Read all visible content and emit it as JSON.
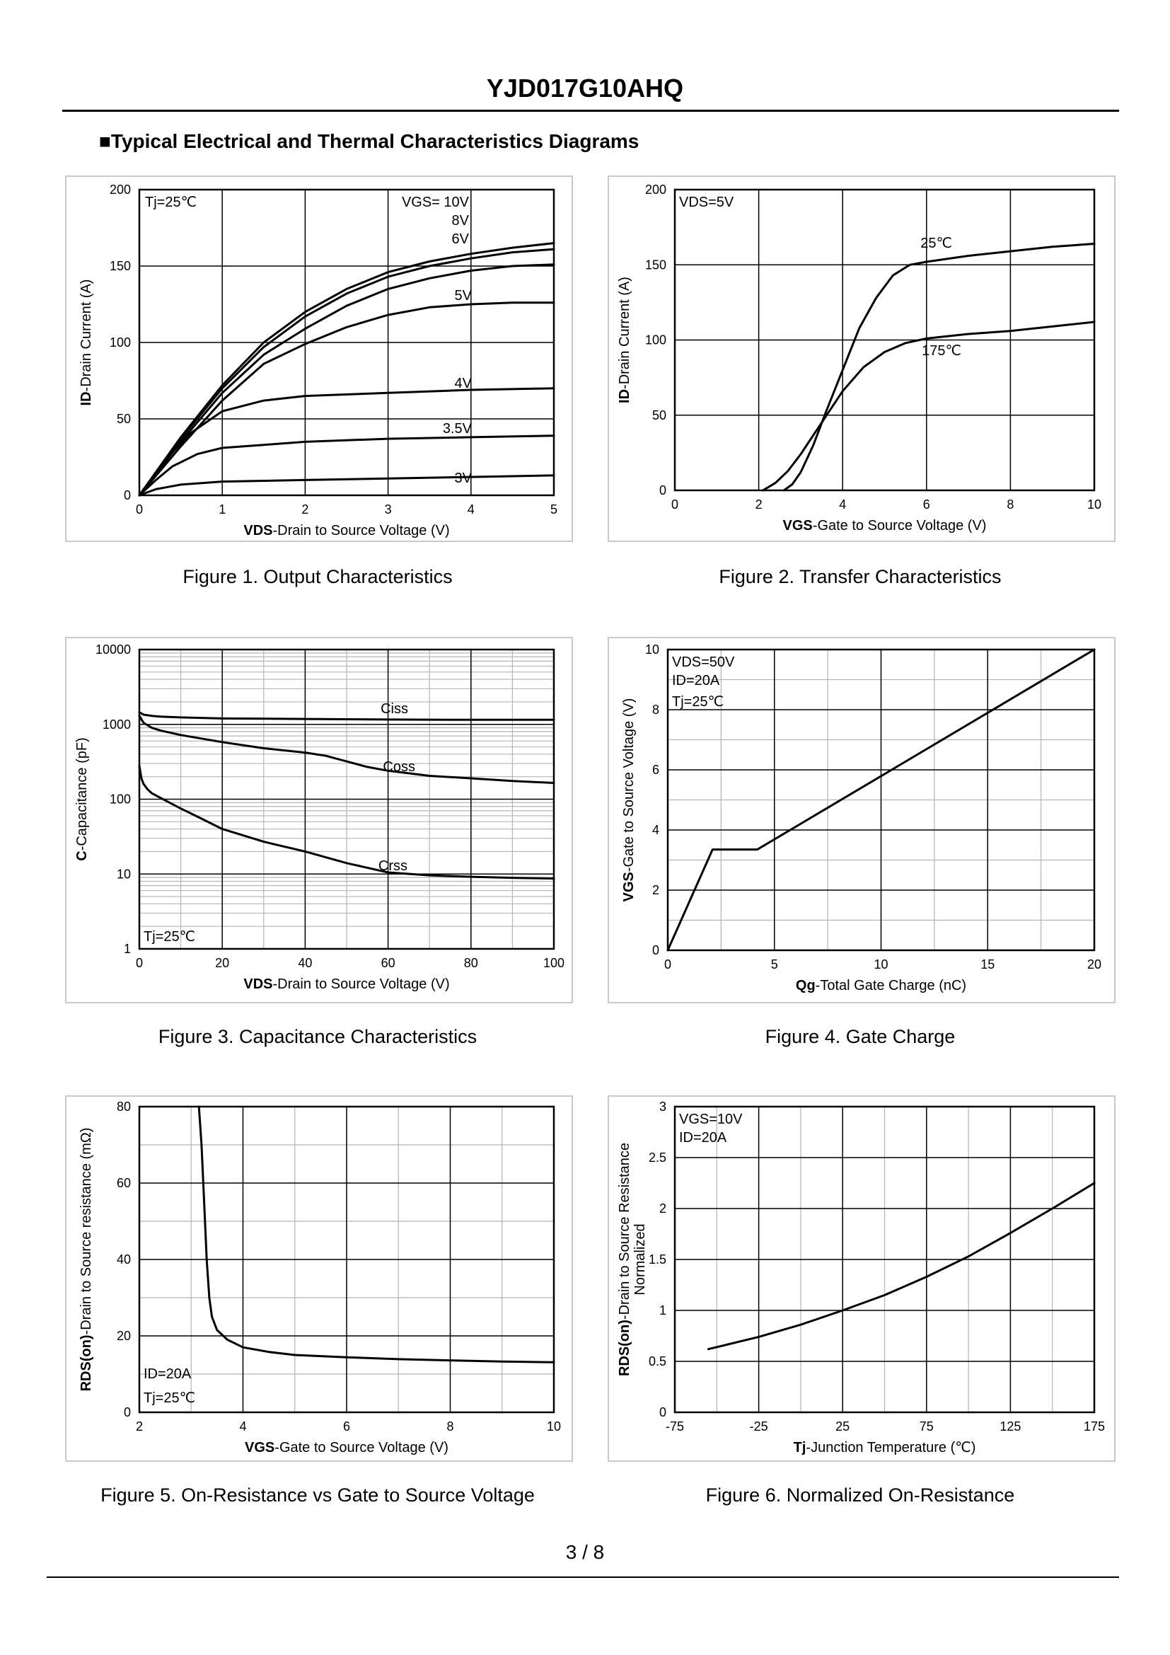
{
  "header": {
    "title": "YJD017G10AHQ"
  },
  "section_title": "■Typical Electrical and Thermal Characteristics Diagrams",
  "footer": {
    "page": "3 / 8"
  },
  "colors": {
    "curve": "#000000",
    "grid": "#000000",
    "minor_grid": "#b4b4b4",
    "panel_border": "#c8c8c8"
  },
  "chart_data": [
    {
      "id": "fig1",
      "type": "line",
      "caption": "Figure 1.  Output Characteristics",
      "xlabel_bold": "VDS",
      "xlabel_rest": "-Drain to Source Voltage (V)",
      "ylabel_bold": "ID",
      "ylabel_rest": "-Drain Current (A)",
      "xlim": [
        0,
        5
      ],
      "ylim": [
        0,
        200
      ],
      "xscale": "linear",
      "yscale": "linear",
      "xticks": [
        0,
        1,
        2,
        3,
        4,
        5
      ],
      "yticks": [
        0,
        50,
        100,
        150,
        200
      ],
      "minor_x": [],
      "minor_y": [],
      "annotations": [
        "Tj=25℃",
        "VGS= 10V",
        "8V",
        "6V",
        "5V",
        "4V",
        "3.5V",
        "3V"
      ],
      "series": [
        {
          "name": "10V",
          "x": [
            0,
            0.5,
            1,
            1.5,
            2,
            2.5,
            3,
            3.5,
            4,
            4.5,
            5
          ],
          "y": [
            0,
            38,
            72,
            100,
            120,
            135,
            146,
            153,
            158,
            162,
            165
          ]
        },
        {
          "name": "8V",
          "x": [
            0,
            0.5,
            1,
            1.5,
            2,
            2.5,
            3,
            3.5,
            4,
            4.5,
            5
          ],
          "y": [
            0,
            37,
            70,
            97,
            117,
            132,
            143,
            150,
            155,
            159,
            161
          ]
        },
        {
          "name": "6V",
          "x": [
            0,
            0.5,
            1,
            1.5,
            2,
            2.5,
            3,
            3.5,
            4,
            4.5,
            5
          ],
          "y": [
            0,
            35,
            67,
            92,
            109,
            124,
            135,
            142,
            147,
            150,
            151
          ]
        },
        {
          "name": "5V",
          "x": [
            0,
            0.5,
            1,
            1.5,
            2,
            2.5,
            3,
            3.5,
            4,
            4.5,
            5
          ],
          "y": [
            0,
            32,
            62,
            86,
            99,
            110,
            118,
            123,
            125,
            126,
            126
          ]
        },
        {
          "name": "4V",
          "x": [
            0,
            0.3,
            0.6,
            1,
            1.5,
            2,
            3,
            4,
            5
          ],
          "y": [
            0,
            22,
            40,
            55,
            62,
            65,
            67,
            69,
            70
          ]
        },
        {
          "name": "3.5V",
          "x": [
            0,
            0.2,
            0.4,
            0.7,
            1,
            1.5,
            2,
            3,
            4,
            5
          ],
          "y": [
            0,
            10,
            19,
            27,
            31,
            33,
            35,
            37,
            38,
            39
          ]
        },
        {
          "name": "3V",
          "x": [
            0,
            0.2,
            0.5,
            1,
            2,
            3,
            4,
            5
          ],
          "y": [
            0,
            4,
            7,
            9,
            10,
            11,
            12,
            13
          ]
        }
      ]
    },
    {
      "id": "fig2",
      "type": "line",
      "caption": "Figure 2.  Transfer Characteristics",
      "xlabel_bold": "VGS",
      "xlabel_rest": "-Gate to Source Voltage (V)",
      "ylabel_bold": "ID",
      "ylabel_rest": "-Drain Current (A)",
      "xlim": [
        0,
        10
      ],
      "ylim": [
        0,
        200
      ],
      "xscale": "linear",
      "yscale": "linear",
      "xticks": [
        0,
        2,
        4,
        6,
        8,
        10
      ],
      "yticks": [
        0,
        50,
        100,
        150,
        200
      ],
      "minor_x": [],
      "minor_y": [],
      "annotations": [
        "VDS=5V",
        "25℃",
        "175℃"
      ],
      "series": [
        {
          "name": "25℃",
          "x": [
            2.6,
            2.8,
            3,
            3.3,
            3.6,
            4,
            4.4,
            4.8,
            5.2,
            5.6,
            6,
            7,
            8,
            9,
            10
          ],
          "y": [
            0,
            4,
            12,
            30,
            52,
            80,
            108,
            128,
            143,
            150,
            152,
            156,
            159,
            162,
            164
          ]
        },
        {
          "name": "175℃",
          "x": [
            2.1,
            2.4,
            2.7,
            3,
            3.5,
            4,
            4.5,
            5,
            5.5,
            6,
            7,
            8,
            9,
            10
          ],
          "y": [
            0,
            5,
            13,
            24,
            45,
            66,
            82,
            92,
            98,
            101,
            104,
            106,
            109,
            112
          ]
        }
      ]
    },
    {
      "id": "fig3",
      "type": "line",
      "caption": "Figure 3.  Capacitance Characteristics",
      "xlabel_bold": "VDS",
      "xlabel_rest": "-Drain to Source Voltage (V)",
      "ylabel_bold": "C",
      "ylabel_rest": "-Capacitance (pF)",
      "xlim": [
        0,
        100
      ],
      "ylim": [
        1,
        10000
      ],
      "xscale": "linear",
      "yscale": "log",
      "xticks": [
        0,
        20,
        40,
        60,
        80,
        100
      ],
      "yticks": [
        1,
        10,
        100,
        1000,
        10000
      ],
      "minor_x": [
        10,
        30,
        50,
        70,
        90
      ],
      "minor_y": [
        2,
        3,
        4,
        5,
        6,
        7,
        8,
        9,
        20,
        30,
        40,
        50,
        60,
        70,
        80,
        90,
        200,
        300,
        400,
        500,
        600,
        700,
        800,
        900,
        2000,
        3000,
        4000,
        5000,
        6000,
        7000,
        8000,
        9000
      ],
      "annotations": [
        "Ciss",
        "Coss",
        "Crss",
        "Tj=25℃"
      ],
      "series": [
        {
          "name": "Ciss",
          "x": [
            0,
            1,
            3,
            5,
            10,
            20,
            40,
            60,
            80,
            100
          ],
          "y": [
            1450,
            1350,
            1300,
            1270,
            1240,
            1200,
            1180,
            1160,
            1150,
            1150
          ]
        },
        {
          "name": "Coss",
          "x": [
            0,
            1,
            3,
            5,
            10,
            20,
            30,
            40,
            45,
            50,
            55,
            60,
            70,
            80,
            90,
            100
          ],
          "y": [
            1300,
            1050,
            900,
            830,
            720,
            580,
            480,
            420,
            380,
            320,
            270,
            240,
            205,
            190,
            175,
            165
          ]
        },
        {
          "name": "Crss",
          "x": [
            0,
            0.5,
            1,
            2,
            3,
            5,
            10,
            15,
            20,
            30,
            40,
            50,
            60,
            70,
            80,
            90,
            100
          ],
          "y": [
            280,
            190,
            160,
            135,
            120,
            105,
            75,
            55,
            40,
            27,
            20,
            14,
            10.5,
            9.6,
            9.2,
            8.9,
            8.7
          ]
        }
      ]
    },
    {
      "id": "fig4",
      "type": "line",
      "caption": "Figure 4.  Gate Charge",
      "xlabel_bold": "Qg",
      "xlabel_rest": "-Total  Gate Charge (nC)",
      "ylabel_bold": "VGS",
      "ylabel_rest": "-Gate to Source Voltage (V)",
      "xlim": [
        0,
        20
      ],
      "ylim": [
        0,
        10
      ],
      "xscale": "linear",
      "yscale": "linear",
      "xticks": [
        0,
        5,
        10,
        15,
        20
      ],
      "yticks": [
        0,
        2,
        4,
        6,
        8,
        10
      ],
      "minor_x": [
        2.5,
        7.5,
        12.5,
        17.5
      ],
      "minor_y": [
        1,
        3,
        5,
        7,
        9
      ],
      "annotations": [
        "VDS=50V",
        "ID=20A",
        "Tj=25℃"
      ],
      "series": [
        {
          "name": "VGS",
          "x": [
            0,
            2.1,
            4.2,
            20
          ],
          "y": [
            0,
            3.35,
            3.35,
            10
          ]
        }
      ]
    },
    {
      "id": "fig5",
      "type": "line",
      "caption": "Figure 5.  On-Resistance vs Gate to Source Voltage",
      "xlabel_bold": "VGS",
      "xlabel_rest": "-Gate to Source Voltage (V)",
      "ylabel_bold": "RDS(on)",
      "ylabel_rest": "-Drain to Source resistance (mΩ)",
      "xlim": [
        2,
        10
      ],
      "ylim": [
        0,
        80
      ],
      "xscale": "linear",
      "yscale": "linear",
      "xticks": [
        2,
        4,
        6,
        8,
        10
      ],
      "yticks": [
        0,
        20,
        40,
        60,
        80
      ],
      "minor_x": [
        3,
        5,
        7,
        9
      ],
      "minor_y": [
        10,
        30,
        50,
        70
      ],
      "annotations": [
        "ID=20A",
        "Tj=25℃"
      ],
      "series": [
        {
          "name": "RDS(on)",
          "x": [
            3.15,
            3.2,
            3.25,
            3.3,
            3.35,
            3.4,
            3.5,
            3.7,
            4,
            4.5,
            5,
            6,
            7,
            8,
            9,
            10
          ],
          "y": [
            80,
            70,
            55,
            40,
            30,
            25,
            21.5,
            19,
            17,
            15.8,
            15,
            14.4,
            13.9,
            13.6,
            13.3,
            13.1
          ]
        }
      ]
    },
    {
      "id": "fig6",
      "type": "line",
      "caption": "Figure 6.  Normalized On-Resistance",
      "xlabel_bold": "Tj",
      "xlabel_rest": "-Junction  Temperature (℃)",
      "ylabel_bold": "RDS(on)",
      "ylabel_rest": "-Drain to Source Resistance",
      "ylabel_line2": "Normalized",
      "xlim": [
        -75,
        175
      ],
      "ylim": [
        0,
        3
      ],
      "xscale": "linear",
      "yscale": "linear",
      "xticks": [
        -75,
        -25,
        25,
        75,
        125,
        175
      ],
      "yticks": [
        0,
        0.5,
        1,
        1.5,
        2,
        2.5,
        3
      ],
      "xtick_labels": [
        "-75",
        "-25",
        "25",
        "75",
        "125",
        "175"
      ],
      "minor_x": [
        -50,
        0,
        50,
        100,
        150
      ],
      "minor_y": [],
      "annotations": [
        "VGS=10V",
        "ID=20A"
      ],
      "series": [
        {
          "name": "Normalized",
          "x": [
            -55,
            -25,
            0,
            25,
            50,
            75,
            100,
            125,
            150,
            175
          ],
          "y": [
            0.62,
            0.74,
            0.86,
            1.0,
            1.15,
            1.33,
            1.53,
            1.76,
            2.0,
            2.25
          ]
        }
      ]
    }
  ]
}
